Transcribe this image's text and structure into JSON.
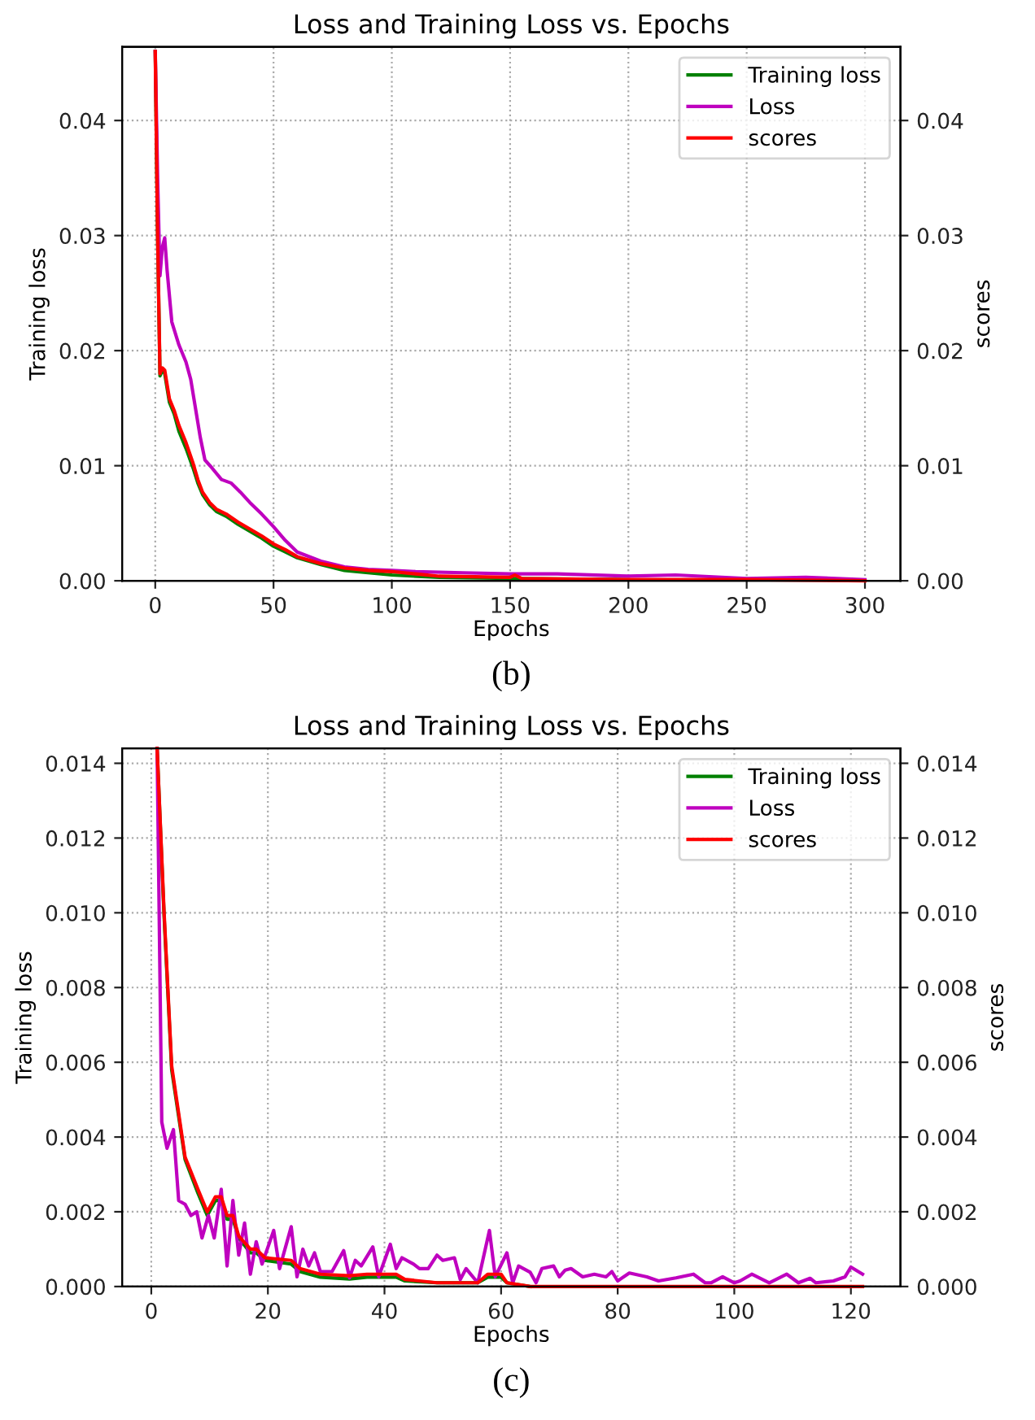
{
  "chart_data": [
    {
      "type": "line",
      "title": "Loss and Training Loss vs. Epochs",
      "xlabel": "Epochs",
      "ylabel": "Training loss",
      "y2label": "scores",
      "xlim": [
        -14,
        315
      ],
      "xticks": [
        0,
        50,
        100,
        150,
        200,
        250,
        300
      ],
      "ylim": [
        0,
        0.0464
      ],
      "yticks": [
        {
          "value": 0,
          "label": "0.00"
        },
        {
          "value": 0.01,
          "label": "0.01"
        },
        {
          "value": 0.02,
          "label": "0.02"
        },
        {
          "value": 0.03,
          "label": "0.03"
        },
        {
          "value": 0.04,
          "label": "0.04"
        }
      ],
      "y2lim": [
        0,
        0.0464
      ],
      "y2ticks": [
        {
          "value": 0,
          "label": "0.00"
        },
        {
          "value": 0.01,
          "label": "0.01"
        },
        {
          "value": 0.02,
          "label": "0.02"
        },
        {
          "value": 0.03,
          "label": "0.03"
        },
        {
          "value": 0.04,
          "label": "0.04"
        }
      ],
      "grid": true,
      "legend": "top right",
      "line_style": "solid",
      "annotations": [
        "(b)"
      ],
      "series": [
        {
          "name": "Training loss",
          "color": "#008000",
          "x": [
            0,
            1,
            2,
            3,
            4,
            6,
            8,
            10,
            13,
            16,
            18,
            20,
            23,
            26,
            30,
            35,
            40,
            45,
            50,
            55,
            60,
            70,
            80,
            90,
            100,
            120,
            150,
            200
          ],
          "values": [
            0.046,
            0.03,
            0.0178,
            0.0183,
            0.018,
            0.0155,
            0.0145,
            0.013,
            0.0115,
            0.0098,
            0.0085,
            0.0075,
            0.0066,
            0.006,
            0.0056,
            0.0049,
            0.0043,
            0.0037,
            0.003,
            0.0025,
            0.002,
            0.0014,
            0.0009,
            0.0007,
            0.0005,
            0.0003,
            0.0002,
            0.0001
          ]
        },
        {
          "name": "Loss",
          "color": "#bf00bf",
          "x": [
            0,
            1,
            2,
            3,
            4,
            5,
            7,
            10,
            13,
            15,
            17,
            19,
            21,
            24,
            28,
            32,
            36,
            40,
            45,
            50,
            55,
            60,
            70,
            80,
            90,
            100,
            110,
            130,
            150,
            170,
            200,
            220,
            250,
            275,
            300
          ],
          "values": [
            0.046,
            0.035,
            0.0265,
            0.029,
            0.0298,
            0.027,
            0.0225,
            0.0205,
            0.019,
            0.0175,
            0.015,
            0.0125,
            0.0105,
            0.0098,
            0.0088,
            0.0085,
            0.0077,
            0.0068,
            0.0058,
            0.0047,
            0.0035,
            0.0025,
            0.0017,
            0.0012,
            0.001,
            0.0009,
            0.0008,
            0.0007,
            0.0006,
            0.0006,
            0.0004,
            0.0005,
            0.0002,
            0.0003,
            0.0001
          ]
        },
        {
          "name": "scores",
          "color": "#ff0000",
          "axis": "y2",
          "x": [
            0,
            1,
            2,
            3,
            4,
            6,
            8,
            10,
            13,
            16,
            18,
            20,
            23,
            26,
            30,
            35,
            40,
            45,
            50,
            55,
            60,
            70,
            80,
            90,
            100,
            110,
            120,
            150,
            152,
            155,
            200,
            250,
            300
          ],
          "values": [
            0.046,
            0.03,
            0.018,
            0.0185,
            0.0183,
            0.0158,
            0.0148,
            0.0135,
            0.012,
            0.0102,
            0.0088,
            0.0077,
            0.0068,
            0.0062,
            0.0058,
            0.0051,
            0.0045,
            0.0039,
            0.0032,
            0.0027,
            0.0021,
            0.0015,
            0.0011,
            0.0009,
            0.0008,
            0.0006,
            0.0004,
            0.0003,
            0.0005,
            0.0002,
            0.0001,
            0.0001,
            0.0
          ]
        }
      ]
    },
    {
      "type": "line",
      "title": "Loss and Training Loss vs. Epochs",
      "xlabel": "Epochs",
      "ylabel": "Training loss",
      "y2label": "scores",
      "xlim": [
        -5,
        128.5
      ],
      "xticks": [
        0,
        20,
        40,
        60,
        80,
        100,
        120
      ],
      "ylim": [
        0,
        0.0144
      ],
      "yticks": [
        {
          "value": 0,
          "label": "0.000"
        },
        {
          "value": 0.002,
          "label": "0.002"
        },
        {
          "value": 0.004,
          "label": "0.004"
        },
        {
          "value": 0.006,
          "label": "0.006"
        },
        {
          "value": 0.008,
          "label": "0.008"
        },
        {
          "value": 0.01,
          "label": "0.010"
        },
        {
          "value": 0.012,
          "label": "0.012"
        },
        {
          "value": 0.014,
          "label": "0.014"
        }
      ],
      "y2lim": [
        0,
        0.0144
      ],
      "y2ticks": [
        {
          "value": 0,
          "label": "0.000"
        },
        {
          "value": 0.002,
          "label": "0.002"
        },
        {
          "value": 0.004,
          "label": "0.004"
        },
        {
          "value": 0.006,
          "label": "0.006"
        },
        {
          "value": 0.008,
          "label": "0.008"
        },
        {
          "value": 0.01,
          "label": "0.010"
        },
        {
          "value": 0.012,
          "label": "0.012"
        },
        {
          "value": 0.014,
          "label": "0.014"
        }
      ],
      "grid": true,
      "legend": "top right",
      "line_style": "solid",
      "annotations": [
        "(c)"
      ],
      "series": [
        {
          "name": "Training loss",
          "color": "#008000",
          "x": [
            1,
            2.2,
            3.5,
            5.8,
            8,
            9.6,
            11,
            12,
            13,
            14,
            15,
            17,
            18,
            19.5,
            24,
            25.5,
            29,
            34,
            37,
            42,
            43.5,
            49,
            56,
            57.7,
            60,
            61,
            65
          ],
          "values": [
            0.0144,
            0.0099,
            0.0058,
            0.0034,
            0.0025,
            0.0019,
            0.0023,
            0.0023,
            0.0018,
            0.0018,
            0.0013,
            0.0009,
            0.0009,
            0.0007,
            0.0006,
            0.0004,
            0.00025,
            0.0002,
            0.00025,
            0.00025,
            0.00015,
            0.0001,
            0.0001,
            0.00025,
            0.00025,
            0.0001,
            0.0
          ]
        },
        {
          "name": "Loss",
          "color": "#bf00bf",
          "x": [
            1,
            1.8,
            2.7,
            3.8,
            4.7,
            5.8,
            6.8,
            7.8,
            8.7,
            9.8,
            10.8,
            12,
            13,
            14,
            15,
            16,
            17,
            18,
            19,
            21,
            22,
            24,
            25,
            26,
            27,
            28,
            29,
            31,
            33,
            34,
            35,
            36,
            38,
            39,
            41,
            42,
            43,
            45,
            46,
            47.5,
            49,
            50,
            52,
            53,
            54,
            56,
            58,
            59,
            61,
            62,
            63,
            65,
            66,
            67,
            69,
            70,
            71,
            72,
            74,
            76,
            78,
            79,
            80,
            82,
            85,
            87,
            90,
            93,
            95,
            96,
            98,
            100,
            101,
            103,
            106,
            109,
            111,
            113,
            114,
            117,
            119,
            120,
            122
          ],
          "values": [
            0.0144,
            0.0044,
            0.0037,
            0.0042,
            0.0023,
            0.0022,
            0.0019,
            0.002,
            0.0013,
            0.0019,
            0.0013,
            0.0026,
            0.00055,
            0.0023,
            0.00084,
            0.0017,
            0.00033,
            0.0012,
            0.0006,
            0.0015,
            0.00048,
            0.0016,
            0.00026,
            0.001,
            0.00055,
            0.0009,
            0.0004,
            0.0004,
            0.00096,
            0.00023,
            0.0007,
            0.00055,
            0.00106,
            0.00026,
            0.00113,
            0.00048,
            0.00077,
            0.0006,
            0.00048,
            0.00048,
            0.00084,
            0.0007,
            0.00077,
            0.00019,
            0.00048,
            0.0001,
            0.0015,
            0.00026,
            0.0009,
            0.0001,
            0.00055,
            0.00038,
            0.0001,
            0.00048,
            0.00055,
            0.00026,
            0.00044,
            0.00048,
            0.00026,
            0.00033,
            0.00026,
            0.0004,
            0.00015,
            0.00036,
            0.00026,
            0.00015,
            0.00023,
            0.00033,
            0.0001,
            0.0001,
            0.00026,
            0.0001,
            0.00015,
            0.00033,
            0.0001,
            0.00033,
            0.0001,
            0.00022,
            0.0001,
            0.00015,
            0.00026,
            0.00052,
            0.00033
          ]
        },
        {
          "name": "scores",
          "color": "#ff0000",
          "axis": "y2",
          "x": [
            1,
            2.2,
            3.5,
            5.8,
            8,
            9.6,
            11,
            12,
            13,
            14,
            15,
            17,
            18,
            19.5,
            24,
            25.5,
            29,
            34,
            37,
            42,
            43.5,
            49,
            56,
            57.7,
            60,
            61,
            65,
            80,
            100,
            122
          ],
          "values": [
            0.0144,
            0.01,
            0.0059,
            0.00346,
            0.0026,
            0.002,
            0.0024,
            0.0024,
            0.0019,
            0.0019,
            0.00135,
            0.001,
            0.001,
            0.00077,
            0.0007,
            0.00048,
            0.00033,
            0.00029,
            0.00033,
            0.00033,
            0.00019,
            0.0001,
            0.0001,
            0.00033,
            0.00033,
            0.0001,
            0.0,
            0.0,
            0.0,
            0.0
          ]
        }
      ]
    }
  ]
}
